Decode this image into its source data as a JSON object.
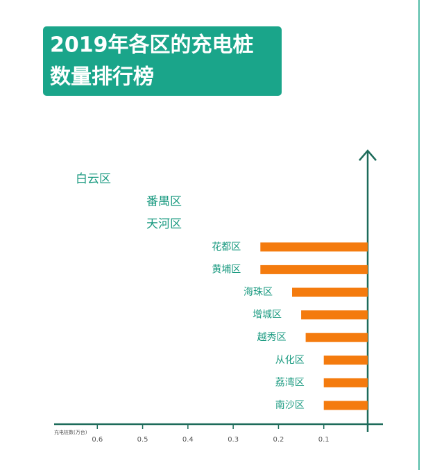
{
  "chart_data": {
    "type": "hbar",
    "title": [
      "2019年各区的充电桩",
      "数量排行榜"
    ],
    "x_label": "充电桩数(万台)",
    "categories": [
      "白云区",
      "番禺区",
      "天河区",
      "花都区",
      "黄埔区",
      "海珠区",
      "增城区",
      "越秀区",
      "从化区",
      "荔湾区",
      "南沙区"
    ],
    "values": [
      null,
      null,
      null,
      0.24,
      0.24,
      0.17,
      0.15,
      0.14,
      0.1,
      0.1,
      0.1
    ],
    "color": "#f47b0e",
    "xlim": [
      0.7,
      0
    ],
    "xticks": [
      0.6,
      0.5,
      0.4,
      0.3,
      0.2,
      0.1
    ]
  }
}
